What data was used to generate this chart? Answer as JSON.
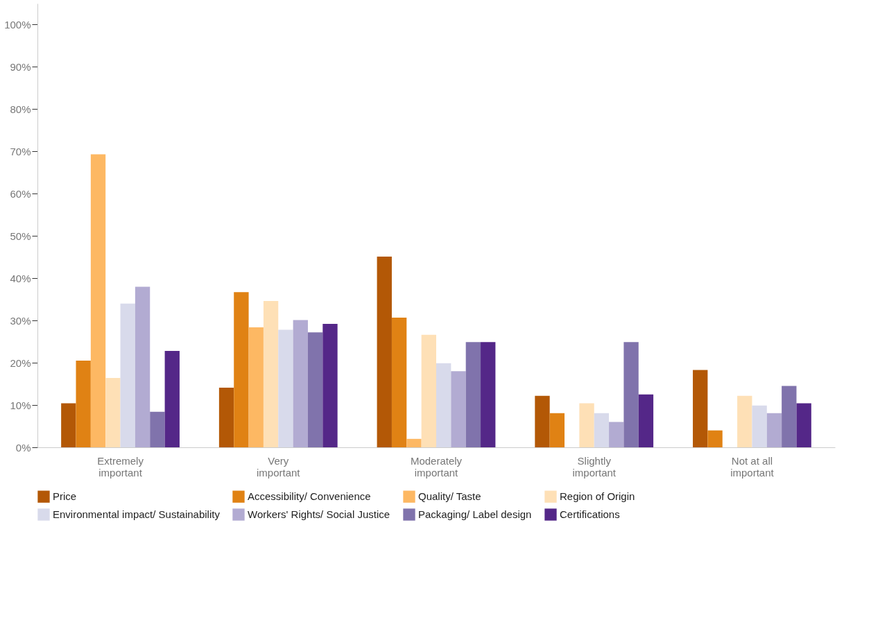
{
  "chart_data": {
    "type": "bar",
    "categories": [
      "Extremely important",
      "Very important",
      "Moderately important",
      "Slightly important",
      "Not at all important"
    ],
    "series": [
      {
        "name": "Price",
        "color": "#b35806",
        "values": [
          10.4,
          14.1,
          45.1,
          12.2,
          18.3
        ]
      },
      {
        "name": "Accessibility/ Convenience",
        "color": "#e08214",
        "values": [
          20.5,
          36.7,
          30.7,
          8.1,
          4.0
        ]
      },
      {
        "name": "Quality/ Taste",
        "color": "#fdb863",
        "values": [
          69.3,
          28.4,
          2.0,
          null,
          null
        ]
      },
      {
        "name": "Region of Origin",
        "color": "#fee0b6",
        "values": [
          16.4,
          34.6,
          26.6,
          10.4,
          12.2
        ]
      },
      {
        "name": "Environmental impact/ Sustainability",
        "color": "#d8daeb",
        "values": [
          34.0,
          27.8,
          19.9,
          8.1,
          9.9
        ]
      },
      {
        "name": "Workers' Rights/ Social Justice",
        "color": "#b2abd2",
        "values": [
          38.0,
          30.1,
          18.0,
          6.0,
          8.1
        ]
      },
      {
        "name": "Packaging/ Label design",
        "color": "#8073ac",
        "values": [
          8.4,
          27.2,
          24.9,
          24.9,
          14.5
        ]
      },
      {
        "name": "Certifications",
        "color": "#542788",
        "values": [
          22.8,
          29.2,
          24.9,
          12.5,
          10.4
        ]
      }
    ],
    "ylim": [
      0,
      105
    ],
    "yticks": [
      {
        "value": 0,
        "label": "0%"
      },
      {
        "value": 10,
        "label": "10%"
      },
      {
        "value": 20,
        "label": "20%"
      },
      {
        "value": 30,
        "label": "30%"
      },
      {
        "value": 40,
        "label": "40%"
      },
      {
        "value": 50,
        "label": "50%"
      },
      {
        "value": 60,
        "label": "60%"
      },
      {
        "value": 70,
        "label": "70%"
      },
      {
        "value": 80,
        "label": "80%"
      },
      {
        "value": 90,
        "label": "90%"
      },
      {
        "value": 100,
        "label": "100%"
      }
    ],
    "grid": false,
    "legend": "bottom"
  }
}
